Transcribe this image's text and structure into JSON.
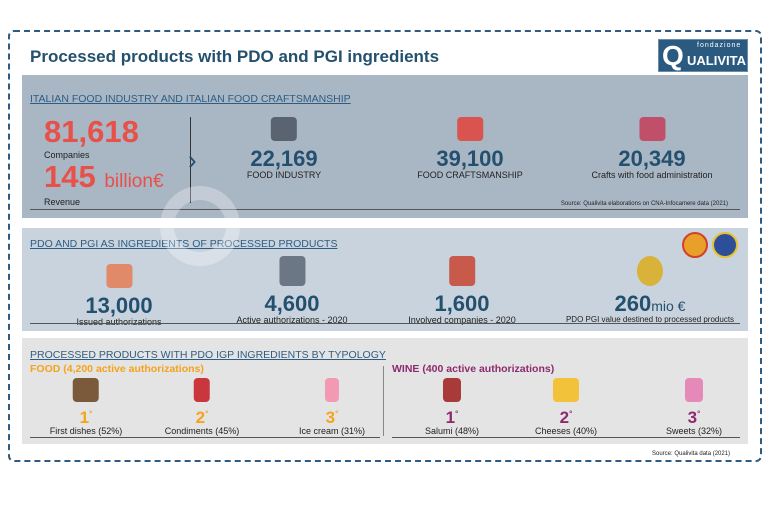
{
  "title": "Processed products with PDO and PGI ingredients",
  "logo": {
    "q": "Q",
    "top": "fondazione",
    "name": "UALIVITA"
  },
  "watermark": "QUALIVITA",
  "section1": {
    "header": "ITALIAN FOOD INDUSTRY AND ITALIAN FOOD CRAFTSMANSHIP",
    "companies_value": "81,618",
    "companies_label": "Companies",
    "revenue_value": "145",
    "revenue_unit": "billion€",
    "revenue_label": "Revenue",
    "items": [
      {
        "value": "22,169",
        "label": "FOOD INDUSTRY",
        "icon": "factory-icon"
      },
      {
        "value": "39,100",
        "label": "FOOD CRAFTSMANSHIP",
        "icon": "hands-jar-icon"
      },
      {
        "value": "20,349",
        "label": "Crafts with food administration",
        "icon": "shop-counter-icon"
      }
    ],
    "source": "Source: Qualivita elaborations on CNA-Infocamere data (2021)"
  },
  "section2": {
    "header": "PDO AND PGI AS INGREDIENTS OF PROCESSED PRODUCTS",
    "items": [
      {
        "value": "13,000",
        "label": "Issued authorizations",
        "icon": "handshake-icon"
      },
      {
        "value": "4,600",
        "label": "Active authorizations - 2020",
        "icon": "document-check-icon"
      },
      {
        "value": "1,600",
        "label": "Involved companies - 2020",
        "icon": "store-icon"
      },
      {
        "value": "260",
        "unit": "mio €",
        "label": "PDO PGI value destined to processed products",
        "icon": "coins-icon"
      }
    ]
  },
  "section3": {
    "header": "PROCESSED PRODUCTS WITH PDO IGP INGREDIENTS BY TYPOLOGY",
    "food_title": "FOOD (4,200 active authorizations)",
    "wine_title": "WINE (400 active authorizations)",
    "food": [
      {
        "rank": "1",
        "label": "First dishes (52%)",
        "icon": "pasta-icon"
      },
      {
        "rank": "2",
        "label": "Condiments (45%)",
        "icon": "sauce-bottle-icon"
      },
      {
        "rank": "3",
        "label": "Ice cream (31%)",
        "icon": "ice-cream-icon"
      }
    ],
    "wine": [
      {
        "rank": "1",
        "label": "Salumi (48%)",
        "icon": "salumi-icon"
      },
      {
        "rank": "2",
        "label": "Cheeses (40%)",
        "icon": "cheese-icon"
      },
      {
        "rank": "3",
        "label": "Sweets (32%)",
        "icon": "cupcake-icon"
      }
    ],
    "source": "Source: Qualivita data (2021)"
  },
  "colors": {
    "red": "#e8504a",
    "navy": "#24506f",
    "orange": "#f5a31a",
    "purple": "#8e2a6f"
  }
}
